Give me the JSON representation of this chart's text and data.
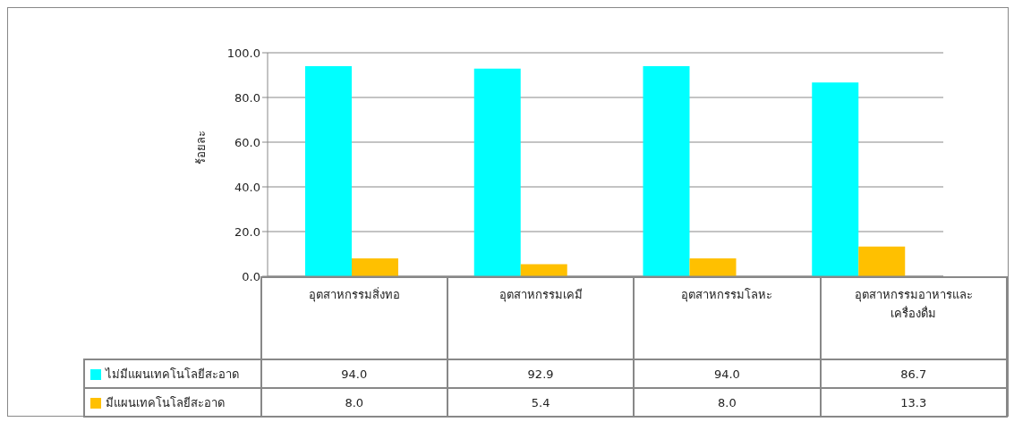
{
  "chart_data": {
    "type": "bar",
    "ylabel": "ร้อยละ",
    "categories": [
      "อุตสาหกรรมสิ่งทอ",
      "อุตสาหกรรมเคมี",
      "อุตสาหกรรมโลหะ",
      "อุตสาหกรรมอาหารและเครื่องดื่ม"
    ],
    "series": [
      {
        "name": "ไม่มีแผนเทคโนโลยีสะอาด",
        "color": "#00ffff",
        "values": [
          94.0,
          92.9,
          94.0,
          86.7
        ],
        "value_labels": [
          "94.0",
          "92.9",
          "94.0",
          "86.7"
        ]
      },
      {
        "name": "มีแผนเทคโนโลยีสะอาด",
        "color": "#ffc000",
        "values": [
          8.0,
          5.4,
          8.0,
          13.3
        ],
        "value_labels": [
          "8.0",
          "5.4",
          "8.0",
          "13.3"
        ]
      }
    ],
    "ylim": [
      0,
      100
    ],
    "yticks": [
      {
        "value": 0,
        "label": "0.0"
      },
      {
        "value": 20,
        "label": "20.0"
      },
      {
        "value": 40,
        "label": "40.0"
      },
      {
        "value": 60,
        "label": "60.0"
      },
      {
        "value": 80,
        "label": "80.0"
      },
      {
        "value": 100,
        "label": "100.0"
      }
    ],
    "grid": "y",
    "legend": "bottom"
  }
}
